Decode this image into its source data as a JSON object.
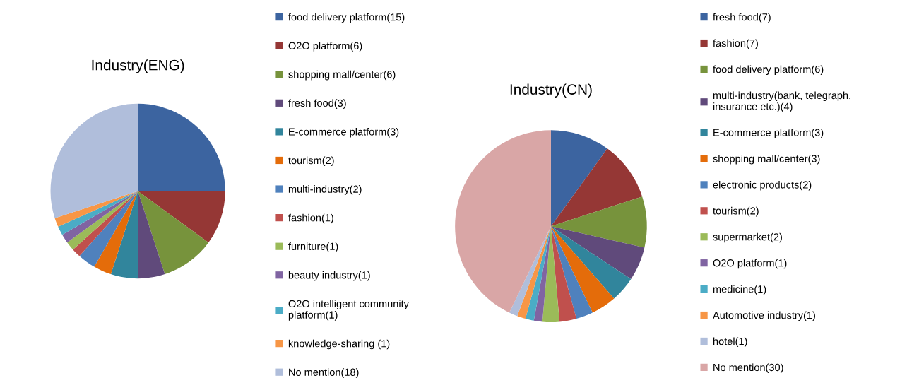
{
  "chart_data": [
    {
      "type": "pie",
      "title": "Industry(ENG)",
      "legend": "right",
      "categories": [
        "food delivery platform(15)",
        "O2O platform(6)",
        "shopping mall/center(6)",
        "fresh food(3)",
        "E-commerce platform(3)",
        "tourism(2)",
        "multi-industry(2)",
        "fashion(1)",
        "furniture(1)",
        "beauty industry(1)",
        "O2O intelligent community platform(1)",
        "knowledge-sharing (1)",
        "No mention(18)"
      ],
      "values": [
        15,
        6,
        6,
        3,
        3,
        2,
        2,
        1,
        1,
        1,
        1,
        1,
        18
      ],
      "colors": [
        "#3c64a0",
        "#953735",
        "#77933c",
        "#604a7b",
        "#31859c",
        "#e46c0a",
        "#4f81bd",
        "#c0504d",
        "#9bbb59",
        "#8064a2",
        "#4bacc6",
        "#f79646",
        "#b0bedb"
      ]
    },
    {
      "type": "pie",
      "title": "Industry(CN)",
      "legend": "right",
      "categories": [
        "fresh food(7)",
        "fashion(7)",
        "food delivery platform(6)",
        "multi-industry(bank, telegraph, insurance etc.)(4)",
        "E-commerce platform(3)",
        "shopping mall/center(3)",
        "electronic products(2)",
        "tourism(2)",
        "supermarket(2)",
        "O2O platform(1)",
        "medicine(1)",
        "Automotive industry(1)",
        "hotel(1)",
        "No mention(30)"
      ],
      "values": [
        7,
        7,
        6,
        4,
        3,
        3,
        2,
        2,
        2,
        1,
        1,
        1,
        1,
        30
      ],
      "colors": [
        "#3c64a0",
        "#953735",
        "#77933c",
        "#604a7b",
        "#31859c",
        "#e46c0a",
        "#4f81bd",
        "#c0504d",
        "#9bbb59",
        "#8064a2",
        "#4bacc6",
        "#f79646",
        "#b0bedb",
        "#d9a6a6"
      ]
    }
  ]
}
